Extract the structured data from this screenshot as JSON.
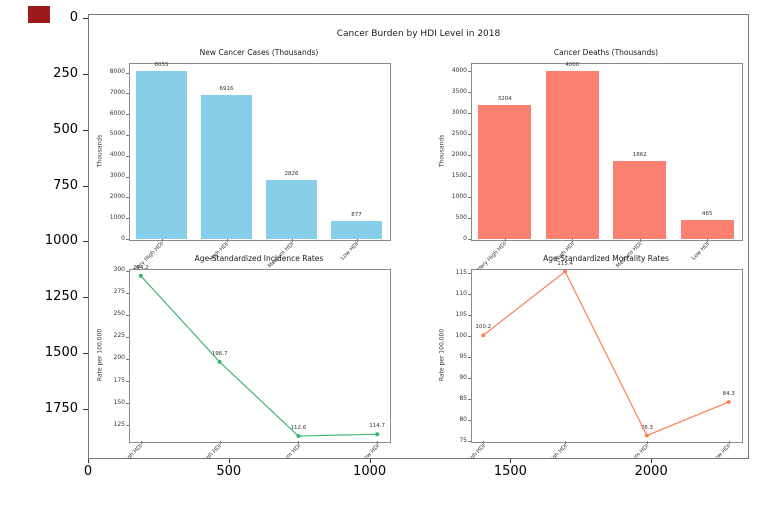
{
  "artifact": {
    "color": "#9e1a1a"
  },
  "outer_axes": {
    "y_tick_labels": [
      "0",
      "250",
      "500",
      "750",
      "1000",
      "1250",
      "1500",
      "1750"
    ],
    "x_tick_labels": [
      "0",
      "500",
      "1000",
      "1500",
      "2000"
    ]
  },
  "figure": {
    "suptitle": "Cancer Burden by HDI Level in 2018"
  },
  "chart_data": [
    {
      "type": "bar",
      "title": "New Cancer Cases (Thousands)",
      "ylabel": "Thousands",
      "categories": [
        "Very High HDI",
        "High HDI",
        "Medium HDI",
        "Low HDI"
      ],
      "values": [
        8055,
        6916,
        2826,
        877
      ],
      "labels": [
        "8055",
        "6916",
        "2826",
        "877"
      ],
      "yticks": [
        0,
        1000,
        2000,
        3000,
        4000,
        5000,
        6000,
        7000,
        8000
      ],
      "ylim": [
        0,
        8460
      ],
      "color": "#87CEEB"
    },
    {
      "type": "bar",
      "title": "Cancer Deaths (Thousands)",
      "ylabel": "Thousands",
      "categories": [
        "Very High HDI",
        "High HDI",
        "Medium HDI",
        "Low HDI"
      ],
      "values": [
        3204,
        4000,
        1862,
        465
      ],
      "labels": [
        "3204",
        "4000",
        "1862",
        "465"
      ],
      "yticks": [
        0,
        500,
        1000,
        1500,
        2000,
        2500,
        3000,
        3500,
        4000
      ],
      "ylim": [
        0,
        4200
      ],
      "color": "#FA8072"
    },
    {
      "type": "line",
      "title": "Age-Standardized Incidence Rates",
      "ylabel": "Rate per 100,000",
      "categories": [
        "Very High HDI",
        "High HDI",
        "Medium HDI",
        "Low HDI"
      ],
      "values": [
        294.2,
        196.7,
        112.6,
        114.7
      ],
      "labels": [
        "294.2",
        "196.7",
        "112.6",
        "114.7"
      ],
      "yticks": [
        125,
        150,
        175,
        200,
        225,
        250,
        275,
        300
      ],
      "ylim": [
        107,
        302
      ],
      "color": "#3CB371"
    },
    {
      "type": "line",
      "title": "Age-Standardized Mortality Rates",
      "ylabel": "Rate per 100,000",
      "categories": [
        "Very High HDI",
        "High HDI",
        "Medium HDI",
        "Low HDI"
      ],
      "values": [
        100.2,
        115.4,
        76.3,
        84.3
      ],
      "labels": [
        "100.2",
        "115.4",
        "76.3",
        "84.3"
      ],
      "yticks": [
        75,
        80,
        85,
        90,
        95,
        100,
        105,
        110,
        115
      ],
      "ylim": [
        75,
        116
      ],
      "color": "#FF7F50"
    }
  ]
}
